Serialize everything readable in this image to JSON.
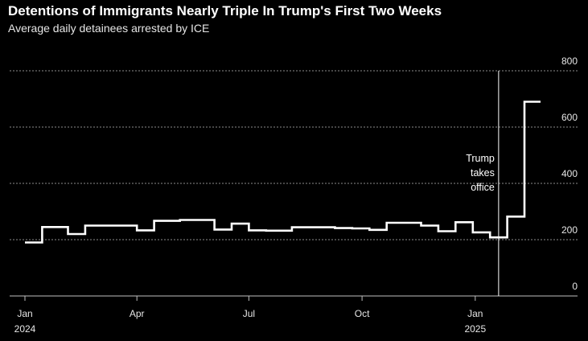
{
  "title": "Detentions of Immigrants Nearly Triple In Trump's First Two Weeks",
  "subtitle": "Average daily detainees arrested by ICE",
  "chart_data": {
    "type": "line",
    "step": true,
    "title": "Detentions of Immigrants Nearly Triple In Trump's First Two Weeks",
    "subtitle": "Average daily detainees arrested by ICE",
    "xlabel": "",
    "ylabel": "",
    "ylim": [
      0,
      800
    ],
    "y_ticks": [
      0,
      200,
      400,
      600,
      800
    ],
    "x_ticks": [
      {
        "date": "2024-01-01",
        "label": "Jan",
        "year": "2024"
      },
      {
        "date": "2024-04-01",
        "label": "Apr",
        "year": ""
      },
      {
        "date": "2024-07-01",
        "label": "Jul",
        "year": ""
      },
      {
        "date": "2024-10-01",
        "label": "Oct",
        "year": ""
      },
      {
        "date": "2025-01-01",
        "label": "Jan",
        "year": "2025"
      }
    ],
    "grid": true,
    "y_axis_side": "right",
    "series": [
      {
        "x": [
          "2024-01-01",
          "2024-01-15",
          "2024-02-05",
          "2024-02-19",
          "2024-03-18",
          "2024-04-01",
          "2024-04-15",
          "2024-05-06",
          "2024-05-20",
          "2024-06-03",
          "2024-06-17",
          "2024-07-01",
          "2024-07-15",
          "2024-08-05",
          "2024-08-19",
          "2024-09-09",
          "2024-09-23",
          "2024-10-07",
          "2024-10-21",
          "2024-11-04",
          "2024-11-18",
          "2024-12-02",
          "2024-12-16",
          "2024-12-30",
          "2025-01-13",
          "2025-01-27",
          "2025-02-10"
        ],
        "y": [
          190,
          245,
          220,
          250,
          250,
          233,
          267,
          270,
          270,
          236,
          257,
          233,
          232,
          244,
          244,
          241,
          240,
          235,
          260,
          260,
          250,
          230,
          262,
          226,
          208,
          282,
          690
        ]
      }
    ],
    "annotations": [
      {
        "text_lines": [
          "Trump",
          "takes",
          "office"
        ],
        "x": "2025-01-20"
      }
    ]
  }
}
